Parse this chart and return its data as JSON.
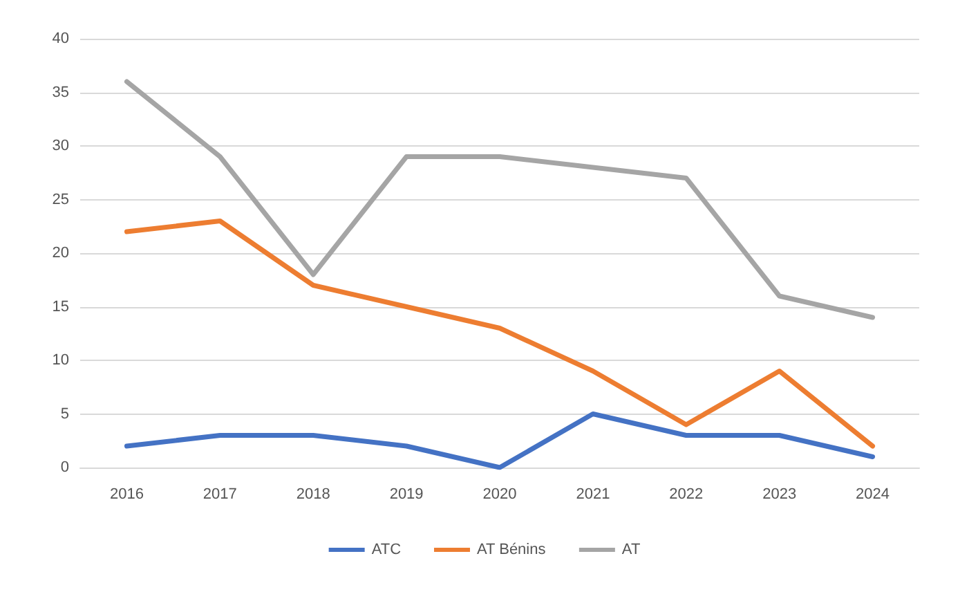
{
  "chart_data": {
    "type": "line",
    "categories": [
      "2016",
      "2017",
      "2018",
      "2019",
      "2020",
      "2021",
      "2022",
      "2023",
      "2024"
    ],
    "series": [
      {
        "name": "ATC",
        "color": "#4472c4",
        "values": [
          2,
          3,
          3,
          2,
          0,
          5,
          3,
          3,
          1
        ]
      },
      {
        "name": "AT Bénins",
        "color": "#ed7d31",
        "values": [
          22,
          23,
          17,
          15,
          13,
          9,
          4,
          9,
          2
        ]
      },
      {
        "name": "AT",
        "color": "#a5a5a5",
        "values": [
          36,
          29,
          18,
          29,
          29,
          28,
          27,
          16,
          14
        ]
      }
    ],
    "ylim": [
      0,
      40
    ],
    "yticks": [
      0,
      5,
      10,
      15,
      20,
      25,
      30,
      35,
      40
    ],
    "grid": "y",
    "legend": "bottom",
    "marker": "none",
    "line_style": "solid"
  }
}
